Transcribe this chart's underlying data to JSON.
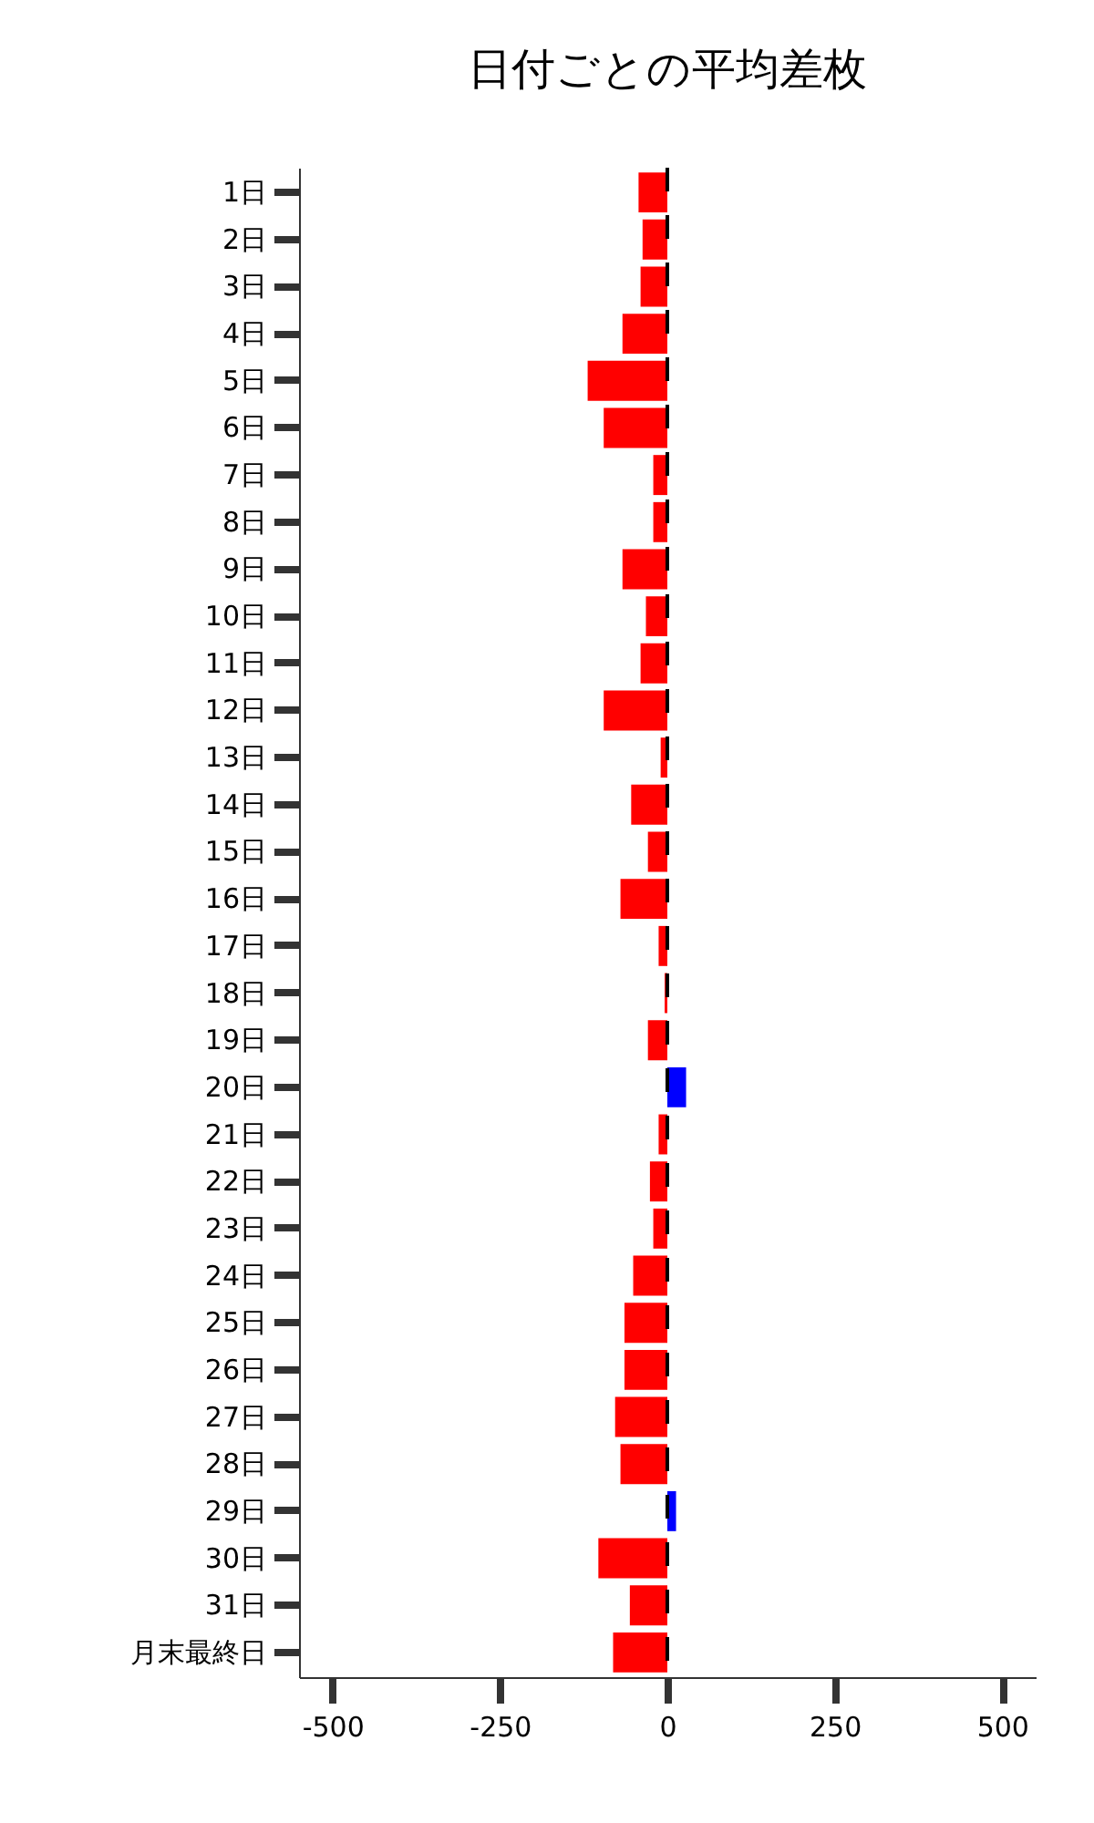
{
  "chart_data": {
    "type": "bar",
    "orientation": "horizontal",
    "title": "日付ごとの平均差枚",
    "categories": [
      "1日",
      "2日",
      "3日",
      "4日",
      "5日",
      "6日",
      "7日",
      "8日",
      "9日",
      "10日",
      "11日",
      "12日",
      "13日",
      "14日",
      "15日",
      "16日",
      "17日",
      "18日",
      "19日",
      "20日",
      "21日",
      "22日",
      "23日",
      "24日",
      "25日",
      "26日",
      "27日",
      "28日",
      "29日",
      "30日",
      "31日",
      "月末最終日"
    ],
    "values": [
      -43,
      -37,
      -40,
      -67,
      -119,
      -95,
      -21,
      -21,
      -67,
      -32,
      -40,
      -95,
      -10,
      -54,
      -29,
      -70,
      -13,
      -4,
      -29,
      28,
      -13,
      -26,
      -21,
      -51,
      -64,
      -64,
      -78,
      -70,
      13,
      -103,
      -56,
      -81
    ],
    "colors": [
      "#ff0000",
      "#ff0000",
      "#ff0000",
      "#ff0000",
      "#ff0000",
      "#ff0000",
      "#ff0000",
      "#ff0000",
      "#ff0000",
      "#ff0000",
      "#ff0000",
      "#ff0000",
      "#ff0000",
      "#ff0000",
      "#ff0000",
      "#ff0000",
      "#ff0000",
      "#ff0000",
      "#ff0000",
      "#0000ff",
      "#ff0000",
      "#ff0000",
      "#ff0000",
      "#ff0000",
      "#ff0000",
      "#ff0000",
      "#ff0000",
      "#ff0000",
      "#0000ff",
      "#ff0000",
      "#ff0000",
      "#ff0000"
    ],
    "xlim": [
      -550,
      550
    ],
    "xticks": [
      -500,
      -250,
      0,
      250,
      500
    ],
    "grid": false,
    "ref_lines": [
      {
        "axis": "x",
        "value": 0,
        "color": "#000000",
        "line_style": "dashed"
      }
    ]
  }
}
